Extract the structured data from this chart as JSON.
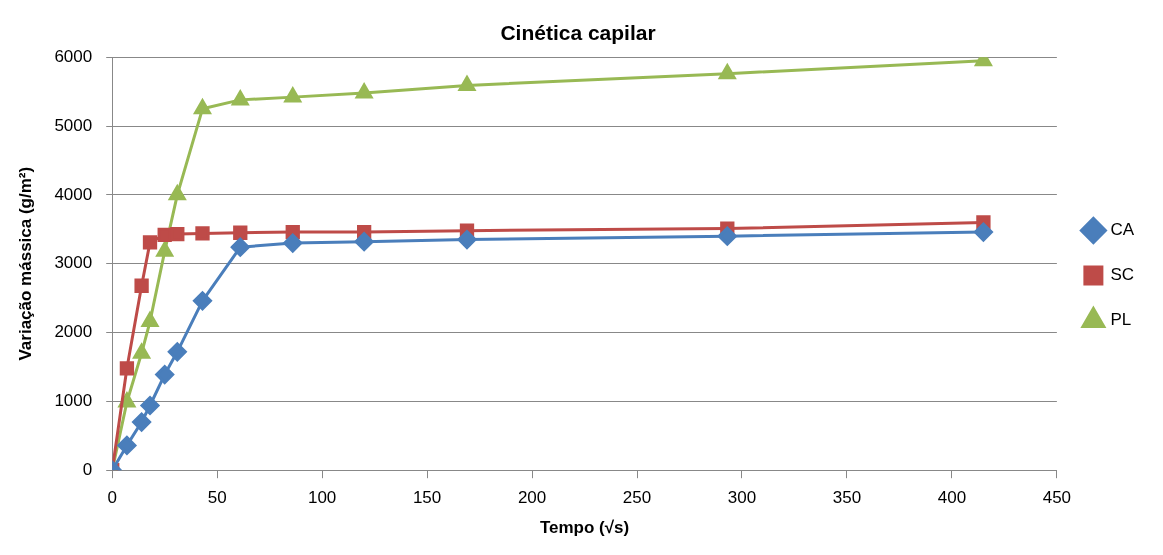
{
  "chart_data": {
    "type": "line",
    "title": "Cinética capilar",
    "xlabel": "Tempo (√s)",
    "ylabel": "Variação mássica (g/m²)",
    "x": [
      0,
      7,
      14,
      18,
      25,
      31,
      43,
      61,
      86,
      120,
      169,
      293,
      415
    ],
    "xlim": [
      0,
      450
    ],
    "xticks": [
      0,
      50,
      100,
      150,
      200,
      250,
      300,
      350,
      400,
      450
    ],
    "ylim": [
      0,
      6000
    ],
    "yticks": [
      0,
      1000,
      2000,
      3000,
      4000,
      5000,
      6000
    ],
    "grid": "y",
    "legend": "right",
    "series": [
      {
        "name": "CA",
        "color": "#4a7ebb",
        "marker": "diamond",
        "values": [
          0,
          360,
          700,
          940,
          1390,
          1720,
          2460,
          3240,
          3300,
          3320,
          3350,
          3400,
          3460
        ]
      },
      {
        "name": "SC",
        "color": "#be4b48",
        "marker": "square",
        "values": [
          0,
          1480,
          2680,
          3310,
          3420,
          3430,
          3440,
          3450,
          3460,
          3460,
          3480,
          3510,
          3600
        ]
      },
      {
        "name": "PL",
        "color": "#98b954",
        "marker": "triangle",
        "values": [
          0,
          990,
          1700,
          2160,
          3180,
          4000,
          5250,
          5380,
          5420,
          5480,
          5590,
          5760,
          5950
        ]
      }
    ]
  }
}
